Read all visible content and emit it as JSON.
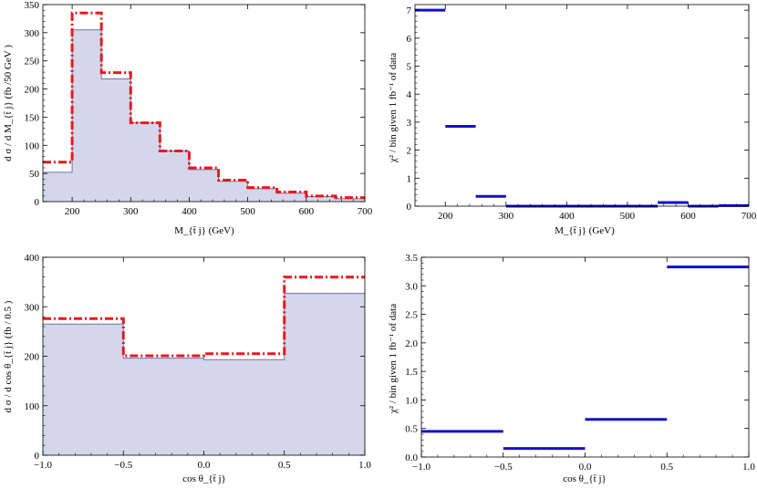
{
  "colors": {
    "histogram_fill": "#d6d6ea",
    "histogram_edge": "#6f6fb0",
    "model_line": "#e8191c",
    "chi2_line": "#1010cc",
    "axis": "#000000"
  },
  "chart_data": [
    {
      "id": "top-left",
      "type": "histogram",
      "xlabel": "M_{t̄ j} (GeV)",
      "ylabel": "d σ / d M_{t̄ j}  (fb /50 GeV )",
      "xlim": [
        150,
        700
      ],
      "ylim": [
        0,
        350
      ],
      "xticks": [
        200,
        300,
        400,
        500,
        600,
        700
      ],
      "yticks": [
        0,
        50,
        100,
        150,
        200,
        250,
        300,
        350
      ],
      "bin_edges": [
        150,
        200,
        250,
        300,
        350,
        400,
        450,
        500,
        550,
        600,
        650,
        700
      ],
      "series": [
        {
          "style": "filled",
          "values": [
            52,
            305,
            218,
            140,
            90,
            57,
            36,
            23,
            15,
            9,
            5
          ]
        },
        {
          "style": "dash-dot",
          "values": [
            70,
            335,
            229,
            140,
            90,
            60,
            38,
            25,
            17,
            10,
            7
          ]
        }
      ]
    },
    {
      "id": "top-right",
      "type": "segments",
      "xlabel": "M_{t̄ j} (GeV)",
      "ylabel": "χ² / bin given 1 fb⁻¹ of data",
      "xlim": [
        150,
        700
      ],
      "ylim": [
        0,
        7.2
      ],
      "xticks": [
        200,
        300,
        400,
        500,
        600,
        700
      ],
      "yticks": [
        0,
        1,
        2,
        3,
        4,
        5,
        6,
        7
      ],
      "bin_edges": [
        150,
        200,
        250,
        300,
        350,
        400,
        450,
        500,
        550,
        600,
        650,
        700
      ],
      "values": [
        7.0,
        2.85,
        0.35,
        0.0,
        0.0,
        0.0,
        0.0,
        0.0,
        0.13,
        0.0,
        0.02
      ]
    },
    {
      "id": "bottom-left",
      "type": "histogram",
      "xlabel": "cos θ_{t̄ j}",
      "ylabel": "d σ / d cos θ_{t̄ j}  (fb / 0.5 )",
      "xlim": [
        -1.0,
        1.0
      ],
      "ylim": [
        0,
        400
      ],
      "xticks": [
        -1.0,
        -0.5,
        0.0,
        0.5,
        1.0
      ],
      "xticklabels": [
        "−1.0",
        "−0.5",
        "0.0",
        "0.5",
        "1.0"
      ],
      "yticks": [
        0,
        100,
        200,
        300,
        400
      ],
      "bin_edges": [
        -1.0,
        -0.5,
        0.0,
        0.5,
        1.0
      ],
      "series": [
        {
          "style": "filled",
          "values": [
            265,
            196,
            193,
            327
          ]
        },
        {
          "style": "dash-dot",
          "values": [
            276,
            201,
            205,
            360
          ]
        }
      ]
    },
    {
      "id": "bottom-right",
      "type": "segments",
      "xlabel": "cos θ_{t̄ j}",
      "ylabel": "χ² / bin given 1 fb⁻¹ of data",
      "xlim": [
        -1.0,
        1.0
      ],
      "ylim": [
        0,
        3.5
      ],
      "xticks": [
        -1.0,
        -0.5,
        0.0,
        0.5,
        1.0
      ],
      "xticklabels": [
        "−1.0",
        "−0.5",
        "0.0",
        "0.5",
        "1.0"
      ],
      "yticks": [
        0,
        0.5,
        1.0,
        1.5,
        2.0,
        2.5,
        3.0,
        3.5
      ],
      "yticklabels": [
        "0.0",
        "0.5",
        "1.0",
        "1.5",
        "2.0",
        "2.5",
        "3.0",
        "3.5"
      ],
      "bin_edges": [
        -1.0,
        -0.5,
        0.0,
        0.5,
        1.0
      ],
      "values": [
        0.45,
        0.15,
        0.66,
        3.33
      ]
    }
  ]
}
